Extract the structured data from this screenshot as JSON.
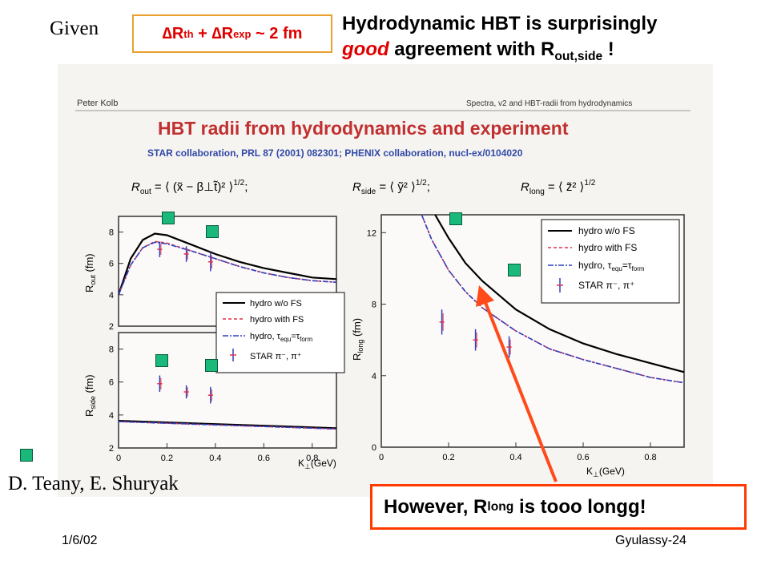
{
  "header": {
    "given": "Given",
    "formula": "∆Rth + ∆Rexp ~ 2 fm",
    "formula_parts": {
      "delta_r": "∆R",
      "th": "th",
      "plus": " + ∆R",
      "exp": "exp",
      "tail": " ~ 2 fm"
    },
    "headline_line1": "Hydrodynamic HBT is surprisingly",
    "headline_good": "good",
    "headline_mid": " agreement with R",
    "headline_sub": "out,side",
    "headline_end": " !"
  },
  "figure": {
    "author_left": "Peter Kolb",
    "header_right": "Spectra, v2 and HBT-radii from hydrodynamics",
    "title": "HBT radii from hydrodynamics and experiment",
    "citation": "STAR collaboration, PRL 87 (2001) 082301; PHENIX collaboration, nucl-ex/0104020",
    "eq_out": "R",
    "eq_out_sub": "out",
    "eq_out_rhs": " = ⟨ (x̃ − β⊥t̃)² ⟩",
    "eq_side": "R",
    "eq_side_sub": "side",
    "eq_side_rhs": " = ⟨ ỹ² ⟩",
    "eq_long": "R",
    "eq_long_sub": "long",
    "eq_long_rhs": " = ⟨ z̃² ⟩",
    "eq_exp": "1/2",
    "semicolon": ";"
  },
  "chart_data": [
    {
      "type": "line",
      "panel": "Rout",
      "ylabel": "Rout (fm)",
      "xlim": [
        0,
        0.9
      ],
      "ylim": [
        2,
        9
      ],
      "yticks": [
        "2",
        "4",
        "6",
        "8"
      ],
      "series": [
        {
          "name": "hydro w/o FS",
          "x": [
            0,
            0.05,
            0.1,
            0.15,
            0.2,
            0.3,
            0.4,
            0.5,
            0.6,
            0.7,
            0.8,
            0.9
          ],
          "y": [
            4.0,
            6.3,
            7.5,
            7.9,
            7.8,
            7.2,
            6.6,
            6.1,
            5.7,
            5.4,
            5.1,
            5.0
          ]
        },
        {
          "name": "hydro with FS",
          "x": [
            0,
            0.05,
            0.1,
            0.15,
            0.2,
            0.3,
            0.4,
            0.5,
            0.6,
            0.7,
            0.8,
            0.9
          ],
          "y": [
            4.0,
            5.9,
            7.0,
            7.4,
            7.3,
            6.8,
            6.3,
            5.8,
            5.4,
            5.1,
            4.9,
            4.8
          ]
        },
        {
          "name": "hydro, τequ=τform",
          "x": [
            0,
            0.05,
            0.1,
            0.15,
            0.2,
            0.3,
            0.4,
            0.5,
            0.6,
            0.7,
            0.8,
            0.9
          ],
          "y": [
            4.0,
            5.9,
            7.0,
            7.35,
            7.25,
            6.8,
            6.3,
            5.8,
            5.4,
            5.1,
            4.9,
            4.8
          ]
        },
        {
          "name": "STAR π⁻, π⁺",
          "x": [
            0.17,
            0.28,
            0.38
          ],
          "y": [
            6.9,
            6.6,
            6.1
          ],
          "err": [
            0.5,
            0.5,
            0.6
          ]
        }
      ]
    },
    {
      "type": "line",
      "panel": "Rside",
      "ylabel": "Rside (fm)",
      "xlabel": "K⊥ (GeV)",
      "xlim": [
        0,
        0.9
      ],
      "ylim": [
        2,
        9
      ],
      "xticks": [
        "0",
        "0.2",
        "0.4",
        "0.6",
        "0.8"
      ],
      "yticks": [
        "2",
        "4",
        "6",
        "8"
      ],
      "series": [
        {
          "name": "hydro w/o FS",
          "x": [
            0,
            0.9
          ],
          "y": [
            3.65,
            3.2
          ]
        },
        {
          "name": "hydro with FS",
          "x": [
            0,
            0.9
          ],
          "y": [
            3.6,
            3.15
          ]
        },
        {
          "name": "hydro, τequ=τform",
          "x": [
            0,
            0.9
          ],
          "y": [
            3.6,
            3.15
          ]
        },
        {
          "name": "STAR π⁻, π⁺",
          "x": [
            0.17,
            0.28,
            0.38
          ],
          "y": [
            5.9,
            5.4,
            5.2
          ],
          "err": [
            0.5,
            0.4,
            0.5
          ]
        }
      ]
    },
    {
      "type": "line",
      "panel": "Rlong",
      "ylabel": "Rlong (fm)",
      "xlabel": "K⊥ (GeV)",
      "xlim": [
        0,
        0.9
      ],
      "ylim": [
        0,
        13
      ],
      "xticks": [
        "0",
        "0.2",
        "0.4",
        "0.6",
        "0.8"
      ],
      "yticks": [
        "0",
        "4",
        "8",
        "12"
      ],
      "legend_position": "top-right",
      "series": [
        {
          "name": "hydro w/o FS",
          "x": [
            0.16,
            0.2,
            0.25,
            0.3,
            0.4,
            0.5,
            0.6,
            0.7,
            0.8,
            0.9
          ],
          "y": [
            13.0,
            11.7,
            10.3,
            9.3,
            7.7,
            6.6,
            5.8,
            5.2,
            4.7,
            4.2
          ]
        },
        {
          "name": "hydro with FS",
          "x": [
            0.12,
            0.15,
            0.2,
            0.25,
            0.3,
            0.4,
            0.5,
            0.6,
            0.7,
            0.8,
            0.9
          ],
          "y": [
            13.0,
            11.6,
            9.9,
            8.7,
            7.8,
            6.5,
            5.5,
            4.9,
            4.4,
            3.9,
            3.6
          ]
        },
        {
          "name": "hydro, τequ=τform",
          "x": [
            0.12,
            0.15,
            0.2,
            0.25,
            0.3,
            0.4,
            0.5,
            0.6,
            0.7,
            0.8,
            0.9
          ],
          "y": [
            13.0,
            11.6,
            9.9,
            8.7,
            7.8,
            6.5,
            5.5,
            4.9,
            4.4,
            3.9,
            3.6
          ]
        },
        {
          "name": "STAR π⁻, π⁺",
          "x": [
            0.18,
            0.28,
            0.38
          ],
          "y": [
            7.0,
            6.0,
            5.6
          ],
          "err": [
            0.7,
            0.6,
            0.6
          ]
        }
      ]
    }
  ],
  "legend": {
    "w_o_fs": "hydro w/o FS",
    "with_fs": "hydro with FS",
    "tau_prefix": "hydro, τ",
    "tau_equ": "equ",
    "tau_mid": "=τ",
    "tau_form": "form",
    "star": "STAR π⁻, π⁺"
  },
  "axis_text": {
    "rout_label": "R",
    "rout_sub": "out",
    "rside_label": "R",
    "rside_sub": "side",
    "rlong_label": "R",
    "rlong_sub": "long",
    "fm": " (fm)",
    "kperp": "K",
    "kperp_sub": "⊥",
    "gev": "(GeV)"
  },
  "colors": {
    "hydro_wo_fs": "#000000",
    "hydro_with_fs": "#e0304a",
    "hydro_tau": "#3040c0",
    "star": "#3040c0",
    "arrow": "#ff4a1a",
    "highlight": "#e00000"
  },
  "footer": {
    "however_prefix": "However, R",
    "however_sub": "long",
    "however_suffix": " is tooo longg!",
    "author": "D. Teany, E. Shuryak",
    "date": "1/6/02",
    "slide": "Gyulassy-24"
  }
}
